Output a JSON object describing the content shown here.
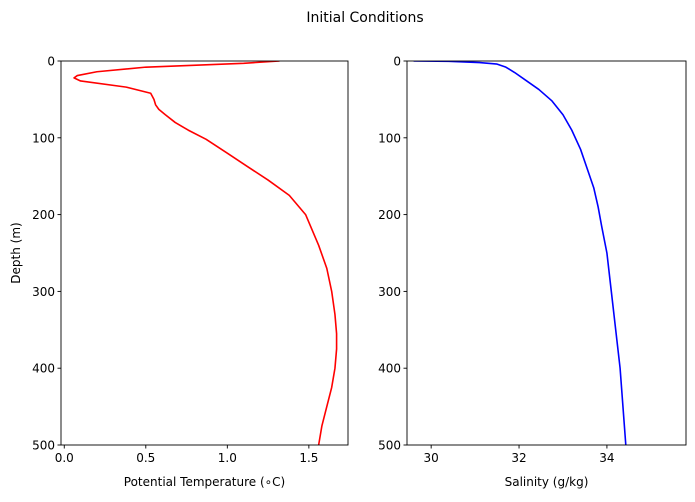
{
  "figure": {
    "suptitle": "Initial Conditions"
  },
  "chart_data": [
    {
      "type": "line",
      "title": "",
      "xlabel": "Potential Temperature (∘C)",
      "ylabel": "Depth (m)",
      "xlim": [
        -0.02,
        1.74
      ],
      "ylim": [
        500,
        0
      ],
      "y_inverted": true,
      "grid": false,
      "legend": "none",
      "xticks": [
        0.0,
        0.5,
        1.0,
        1.5
      ],
      "xtick_labels": [
        "0.0",
        "0.5",
        "1.0",
        "1.5"
      ],
      "yticks": [
        0,
        100,
        200,
        300,
        400,
        500
      ],
      "ytick_labels": [
        "0",
        "100",
        "200",
        "300",
        "400",
        "500"
      ],
      "series": [
        {
          "color": "#ff0000",
          "x": [
            1.32,
            1.1,
            0.5,
            0.2,
            0.08,
            0.06,
            0.1,
            0.38,
            0.53,
            0.55,
            0.56,
            0.58,
            0.62,
            0.68,
            0.76,
            0.87,
            1.0,
            1.12,
            1.25,
            1.38,
            1.48,
            1.56,
            1.61,
            1.64,
            1.66,
            1.67,
            1.67,
            1.66,
            1.64,
            1.61,
            1.58,
            1.56
          ],
          "y": [
            0,
            3,
            8,
            14,
            19,
            22,
            26,
            34,
            42,
            50,
            57,
            63,
            70,
            80,
            90,
            102,
            120,
            137,
            155,
            175,
            200,
            240,
            270,
            300,
            330,
            355,
            375,
            400,
            425,
            450,
            475,
            500
          ]
        }
      ]
    },
    {
      "type": "line",
      "title": "",
      "xlabel": "Salinity (g/kg)",
      "ylabel": "",
      "xlim": [
        29.45,
        35.8
      ],
      "ylim": [
        500,
        0
      ],
      "y_inverted": true,
      "grid": false,
      "legend": "none",
      "xticks": [
        30,
        32,
        34
      ],
      "xtick_labels": [
        "30",
        "32",
        "34"
      ],
      "yticks": [
        0,
        100,
        200,
        300,
        400,
        500
      ],
      "ytick_labels": [
        "0",
        "100",
        "200",
        "300",
        "400",
        "500"
      ],
      "series": [
        {
          "color": "#0000ff",
          "x": [
            29.6,
            30.4,
            31.1,
            31.5,
            31.7,
            31.9,
            32.15,
            32.45,
            32.75,
            33.0,
            33.2,
            33.4,
            33.55,
            33.7,
            33.8,
            33.88,
            34.0,
            34.1,
            34.2,
            34.3,
            34.43
          ],
          "y": [
            0,
            0.5,
            2,
            4,
            8,
            15,
            25,
            37,
            52,
            70,
            90,
            115,
            140,
            165,
            190,
            215,
            250,
            300,
            350,
            400,
            500
          ]
        }
      ]
    }
  ]
}
